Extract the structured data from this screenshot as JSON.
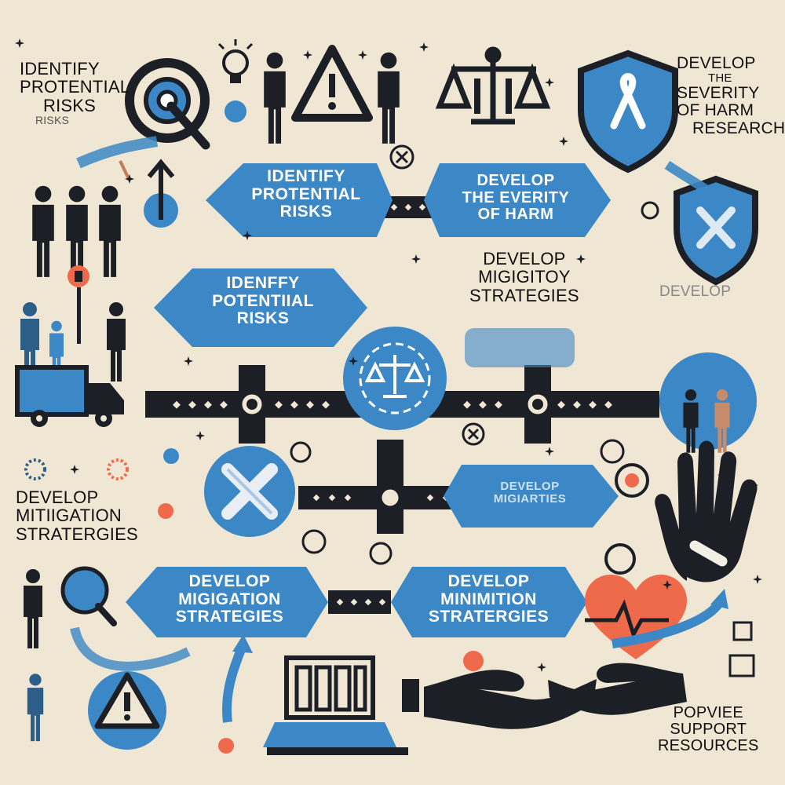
{
  "corner_texts": {
    "top_left": [
      "IDENTIFY",
      "PROTENTIAL",
      "RISKS",
      "RISKS"
    ],
    "top_right": [
      "DEVELOP",
      "THE",
      "SEVERITY",
      "OF HARM",
      "RESEARCH"
    ],
    "mid_right": [
      "DEVELOP",
      "MIGIGITOY",
      "STRATEGIES"
    ],
    "faded_right": [
      "DEVELOP"
    ],
    "left_mid": [
      "DEVELOP",
      "MITIIGATION",
      "STRATERGIES"
    ],
    "bottom_right": [
      "POPVIEE",
      "SUPPORT",
      "RESOURCES"
    ]
  },
  "hex_labels": {
    "identify_top": [
      "IDENTIFY",
      "PROTENTIAL",
      "RISKS"
    ],
    "severity": [
      "DEVELOP",
      "THE EVERITY",
      "OF HARM"
    ],
    "identify_mid": [
      "IDENFFY",
      "POTENTIIAL",
      "RISKS"
    ],
    "mitigarties": [
      "DEVELOP",
      "MIGIARTIES"
    ],
    "mitigation_bottom": [
      "DEVELOP",
      "MIGIGATION",
      "STRATEGIES"
    ],
    "minimition": [
      "DEVELOP",
      "MINIMITION",
      "STRATERGIES"
    ]
  },
  "colors": {
    "background": "#efe6d3",
    "accent_blue": "#3c88c6",
    "dark": "#1c1f26",
    "heart_red": "#ef6a4a"
  },
  "icons": [
    "target-icon",
    "lightbulb-icon",
    "person-icon",
    "warning-icon",
    "scales-icon",
    "shield-ribbon-icon",
    "truck-icon",
    "hand-icon",
    "heart-pulse-icon",
    "helping-hand-icon",
    "laptop-icon"
  ]
}
